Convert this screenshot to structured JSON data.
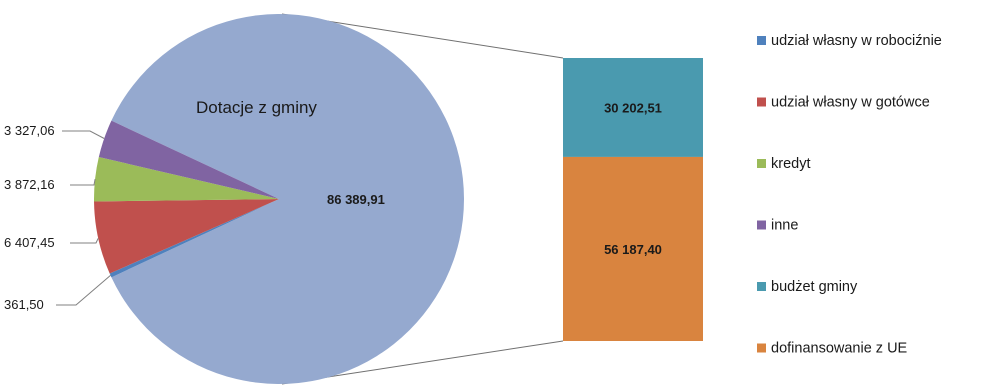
{
  "chart_data": {
    "type": "pie",
    "subtype": "pie-of-bar",
    "pie": {
      "title": "Dotacje z gminy",
      "slices": [
        {
          "name": "Dotacje z gminy",
          "value": 86389.91,
          "label": "86 389,91",
          "color": "#95a9cf"
        },
        {
          "name": "udział własny w robociźnie",
          "value": 361.5,
          "label": "361,50",
          "color": "#4f81bd"
        },
        {
          "name": "udział własny w gotówce",
          "value": 6407.45,
          "label": "6 407,45",
          "color": "#c0504d"
        },
        {
          "name": "kredyt",
          "value": 3872.16,
          "label": "3 872,16",
          "color": "#9bbb59"
        },
        {
          "name": "inne",
          "value": 3327.06,
          "label": "3 327,06",
          "color": "#8064a2"
        }
      ]
    },
    "bar": {
      "segments": [
        {
          "name": "budżet gminy",
          "value": 30202.51,
          "label": "30 202,51",
          "color": "#4a9aaf"
        },
        {
          "name": "dofinansowanie z UE",
          "value": 56187.4,
          "label": "56 187,40",
          "color": "#d9843f"
        }
      ]
    },
    "legend": {
      "placement": "right",
      "entries": [
        {
          "name": "udział własny w robociźnie",
          "color": "#4f81bd"
        },
        {
          "name": "udział własny w gotówce",
          "color": "#c0504d"
        },
        {
          "name": "kredyt",
          "color": "#9bbb59"
        },
        {
          "name": "inne",
          "color": "#8064a2"
        },
        {
          "name": "budżet gminy",
          "color": "#4a9aaf"
        },
        {
          "name": "dofinansowanie z UE",
          "color": "#d9843f"
        }
      ]
    }
  }
}
